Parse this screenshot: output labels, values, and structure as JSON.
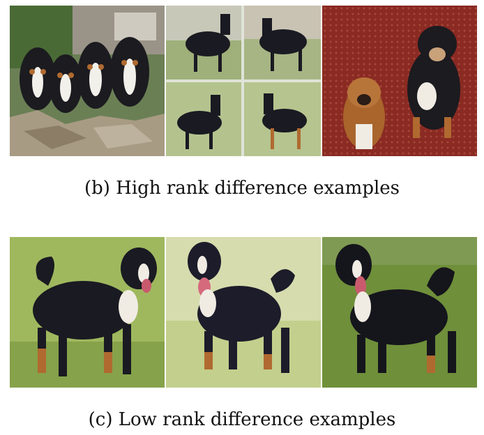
{
  "captions": {
    "high": "(b) High rank difference examples",
    "low": "(c) Low rank difference examples"
  },
  "images": {
    "high_rank": [
      {
        "name": "four-puppies-photo"
      },
      {
        "name": "dog-collage-photo"
      },
      {
        "name": "two-dogs-on-carpet-photo"
      }
    ],
    "low_rank": [
      {
        "name": "dog-on-grass-photo-1"
      },
      {
        "name": "dog-on-grass-photo-2"
      },
      {
        "name": "dog-on-grass-photo-3"
      }
    ]
  },
  "colors": {
    "caption_text": "#111111",
    "grass_light": "#b8c98a",
    "grass_dark": "#6f8f3a",
    "dog_black": "#1a1a22",
    "dog_tan": "#b06a30",
    "carpet_red": "#8a2a22"
  }
}
